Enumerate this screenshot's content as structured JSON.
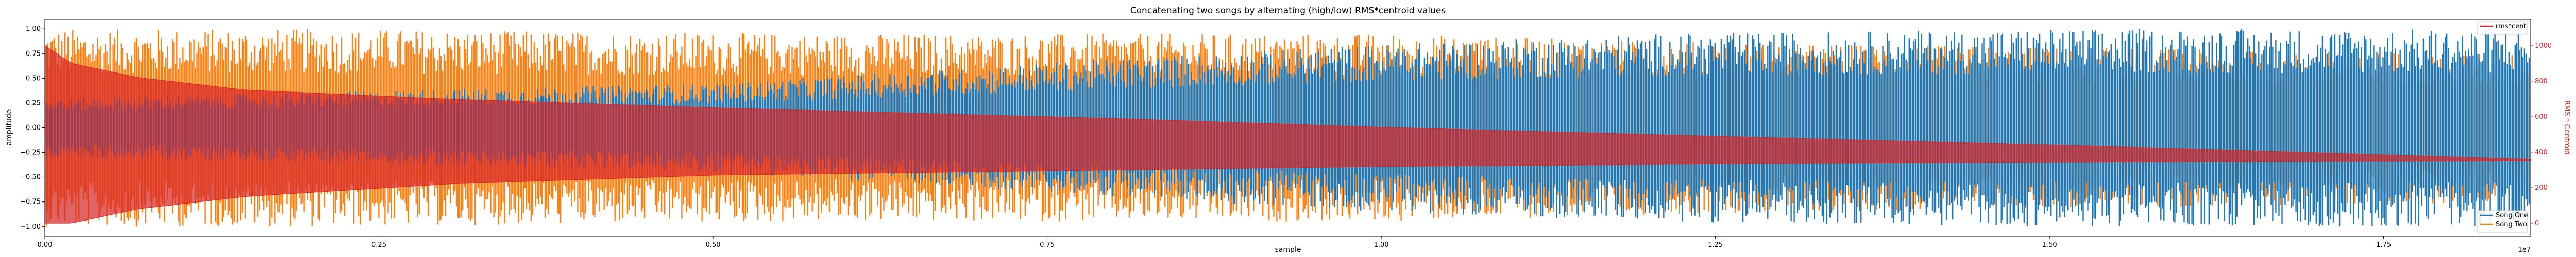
{
  "chart_data": {
    "type": "line",
    "title": "Concatenating two songs by alternating (high/low) RMS*centroid values",
    "xlabel": "sample",
    "ylabel": "amplitude",
    "ylabel_right": "RMS * Centroid",
    "x_multiplier_label": "1e7",
    "xlim": [
      0,
      18600000
    ],
    "ylim": [
      -1.1,
      1.1
    ],
    "ylim_right": [
      -75,
      1150
    ],
    "x_ticks": [
      0,
      2500000,
      5000000,
      7500000,
      10000000,
      12500000,
      15000000,
      17500000
    ],
    "x_tick_labels": [
      "0.00",
      "0.25",
      "0.50",
      "0.75",
      "1.00",
      "1.25",
      "1.50",
      "1.75"
    ],
    "y_ticks": [
      -1.0,
      -0.75,
      -0.5,
      -0.25,
      0.0,
      0.25,
      0.5,
      0.75,
      1.0
    ],
    "y_tick_labels": [
      "−1.00",
      "−0.75",
      "−0.50",
      "−0.25",
      "0.00",
      "0.25",
      "0.50",
      "0.75",
      "1.00"
    ],
    "y_right_ticks": [
      0,
      200,
      400,
      600,
      800,
      1000
    ],
    "y_right_tick_labels": [
      "0",
      "200",
      "400",
      "600",
      "800",
      "1000"
    ],
    "grid": false,
    "series": [
      {
        "name": "Song One",
        "axis": "left",
        "color": "#1f77b4",
        "envelope": {
          "x": [
            0,
            5000000,
            8000000,
            10000000,
            12000000,
            15000000,
            18600000
          ],
          "amplitude": [
            0.3,
            0.45,
            0.7,
            0.85,
            0.95,
            1.0,
            1.0
          ]
        }
      },
      {
        "name": "Song Two",
        "axis": "left",
        "color": "#ff7f0e",
        "envelope": {
          "x": [
            0,
            2000000,
            6000000,
            10000000,
            13000000,
            16000000,
            18600000
          ],
          "amplitude": [
            1.0,
            1.0,
            0.95,
            0.95,
            0.85,
            0.8,
            0.75
          ]
        }
      },
      {
        "name": "rms*cent",
        "axis": "right",
        "color": "#d62728",
        "upper": {
          "x": [
            0,
            200000,
            700000,
            1500000,
            3000000,
            5000000,
            8000000,
            10000000,
            13000000,
            16000000,
            18600000
          ],
          "y": [
            1000,
            900,
            820,
            750,
            700,
            650,
            590,
            540,
            480,
            420,
            360
          ]
        },
        "lower": {
          "x": [
            0,
            200000,
            700000,
            1500000,
            3000000,
            5000000,
            8000000,
            10000000,
            13000000,
            16000000,
            18600000
          ],
          "y": [
            0,
            0,
            80,
            150,
            220,
            270,
            300,
            320,
            335,
            345,
            350
          ]
        }
      }
    ],
    "legend_top": {
      "placement": "top-right",
      "entries": [
        "rms*cent"
      ]
    },
    "legend_bottom": {
      "placement": "bottom-right",
      "entries": [
        "Song One",
        "Song Two"
      ]
    }
  }
}
